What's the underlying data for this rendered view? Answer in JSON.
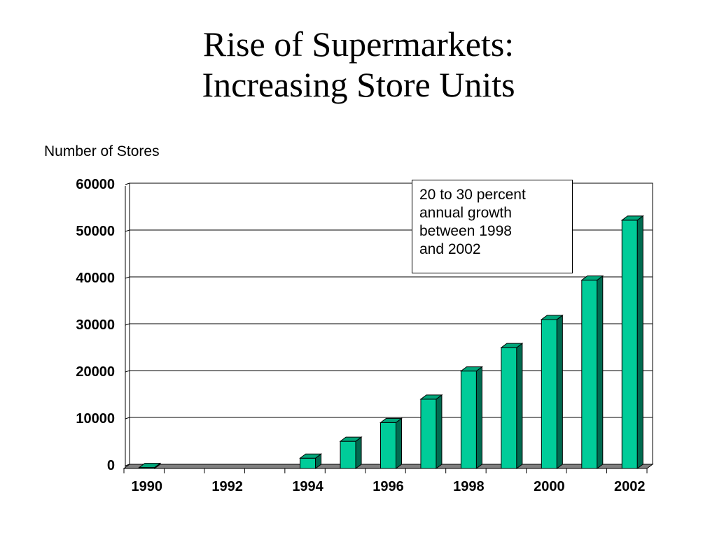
{
  "slide": {
    "title_line1": "Rise of Supermarkets:",
    "title_line2": "Increasing Store Units"
  },
  "colors": {
    "bar_front": "#00cc99",
    "bar_top": "#00a67a",
    "bar_side": "#006b50",
    "floor": "#808080",
    "gridline": "#000000"
  },
  "chart_data": {
    "type": "bar",
    "title": "Rise of Supermarkets: Increasing Store Units",
    "xlabel": "",
    "ylabel": "Number of Stores",
    "ylim": [
      0,
      60000
    ],
    "y_ticks": [
      0,
      10000,
      20000,
      30000,
      40000,
      50000,
      60000
    ],
    "categories": [
      "1990",
      "1991",
      "1992",
      "1993",
      "1994",
      "1995",
      "1996",
      "1997",
      "1998",
      "1999",
      "2000",
      "2001",
      "2002"
    ],
    "x_tick_labels": [
      "1990",
      "",
      "1992",
      "",
      "1994",
      "",
      "1996",
      "",
      "1998",
      "",
      "2000",
      "",
      "2002"
    ],
    "values": [
      200,
      0,
      0,
      0,
      2200,
      5800,
      9800,
      14800,
      20800,
      25800,
      31800,
      40200,
      53000
    ],
    "grid": true,
    "style": "3d-columns"
  },
  "annotation": {
    "lines": [
      "20 to 30 percent",
      "annual growth",
      "between 1998",
      "and 2002"
    ]
  }
}
